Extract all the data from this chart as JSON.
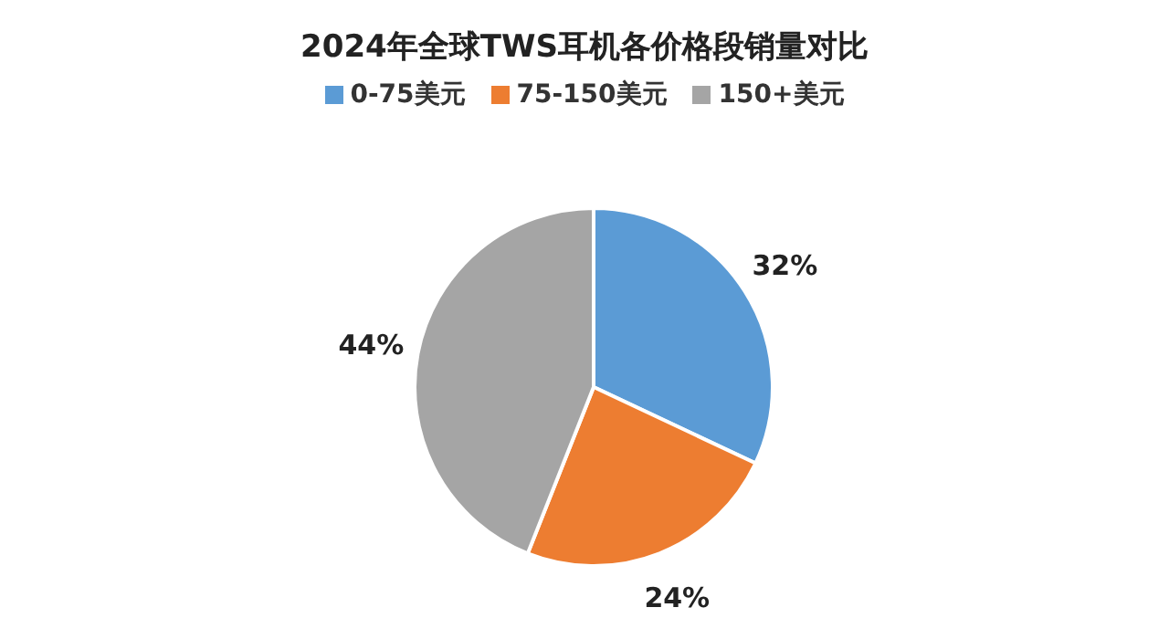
{
  "chart_data": {
    "type": "pie",
    "title": "2024年全球TWS耳机各价格段销量对比",
    "categories": [
      "0-75美元",
      "75-150美元",
      "150+美元"
    ],
    "values": [
      32,
      24,
      44
    ],
    "value_labels": [
      "32%",
      "24%",
      "44%"
    ],
    "colors": [
      "#5b9bd5",
      "#ed7d31",
      "#a5a5a5"
    ],
    "legend": "top"
  }
}
